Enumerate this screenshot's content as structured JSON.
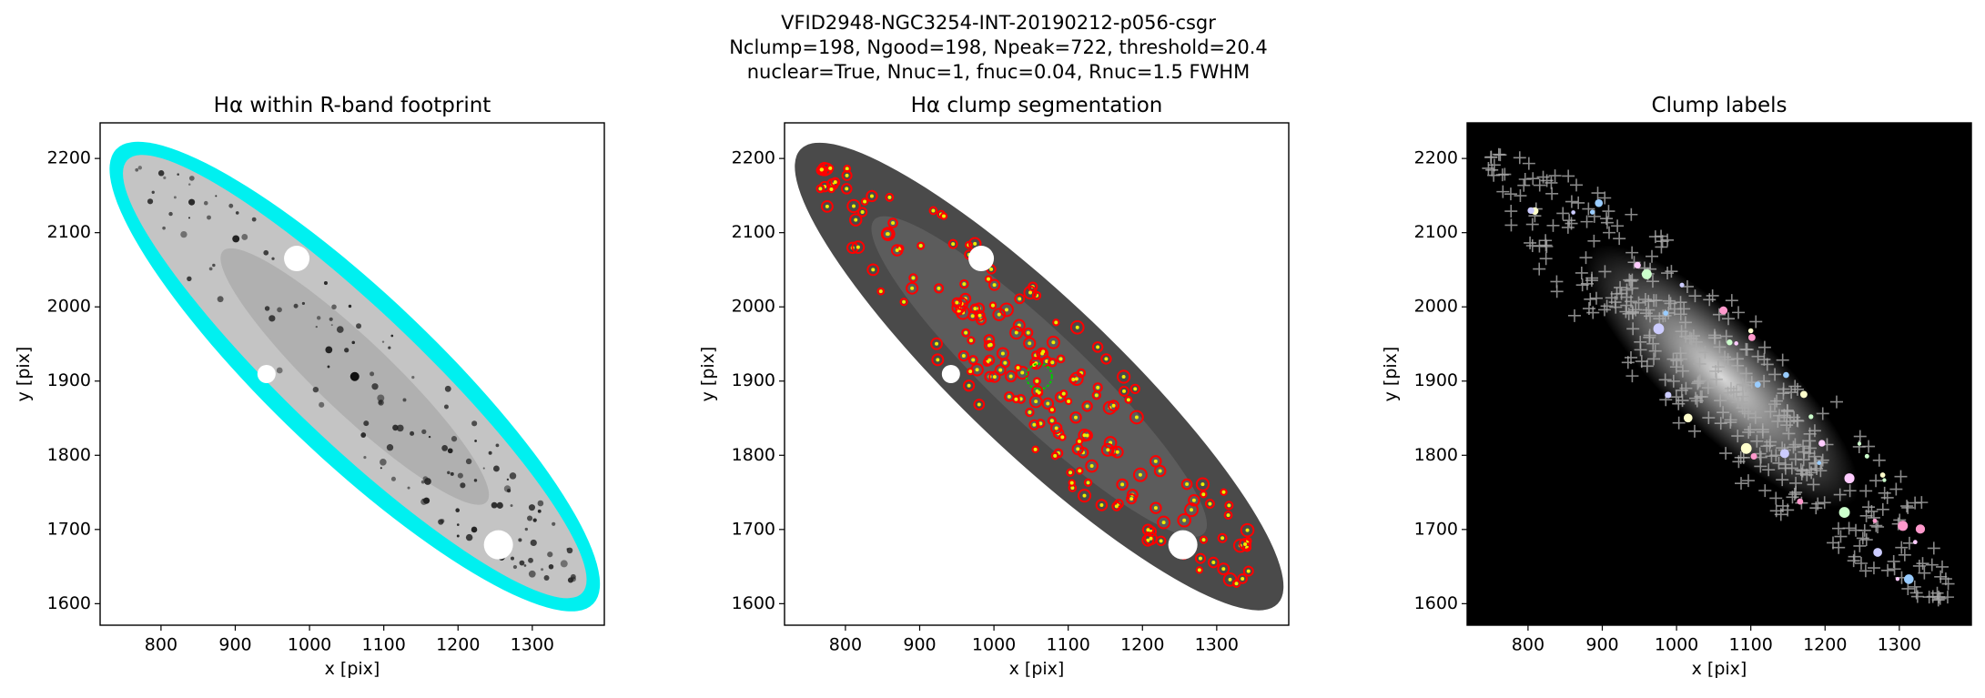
{
  "suptitle": [
    "VFID2948-NGC3254-INT-20190212-p056-csgr",
    "Nclump=198, Ngood=198, Npeak=722, threshold=20.4",
    "nuclear=True, Nnuc=1, fnuc=0.04, Rnuc=1.5 FWHM"
  ],
  "chart_data": [
    {
      "type": "image",
      "style": "footprint",
      "title": "Hα within R-band footprint",
      "xlabel": "x [pix]",
      "ylabel": "y [pix]",
      "xlim": [
        718,
        1397
      ],
      "ylim": [
        1571,
        2248
      ],
      "xticks": [
        800,
        900,
        1000,
        1100,
        1200,
        1300
      ],
      "yticks": [
        1600,
        1700,
        1800,
        1900,
        2000,
        2100,
        2200
      ]
    },
    {
      "type": "image",
      "style": "segmentation",
      "title": "Hα clump segmentation",
      "xlabel": "x [pix]",
      "ylabel": "y [pix]",
      "xlim": [
        718,
        1397
      ],
      "ylim": [
        1571,
        2248
      ],
      "xticks": [
        800,
        900,
        1000,
        1100,
        1200,
        1300
      ],
      "yticks": [
        1600,
        1700,
        1800,
        1900,
        2000,
        2100,
        2200
      ]
    },
    {
      "type": "image",
      "style": "labels",
      "title": "Clump labels",
      "xlabel": "x [pix]",
      "ylabel": "y [pix]",
      "xlim": [
        718,
        1397
      ],
      "ylim": [
        1571,
        2248
      ],
      "xticks": [
        800,
        900,
        1000,
        1100,
        1200,
        1300
      ],
      "yticks": [
        1600,
        1700,
        1800,
        1900,
        2000,
        2100,
        2200
      ]
    }
  ]
}
